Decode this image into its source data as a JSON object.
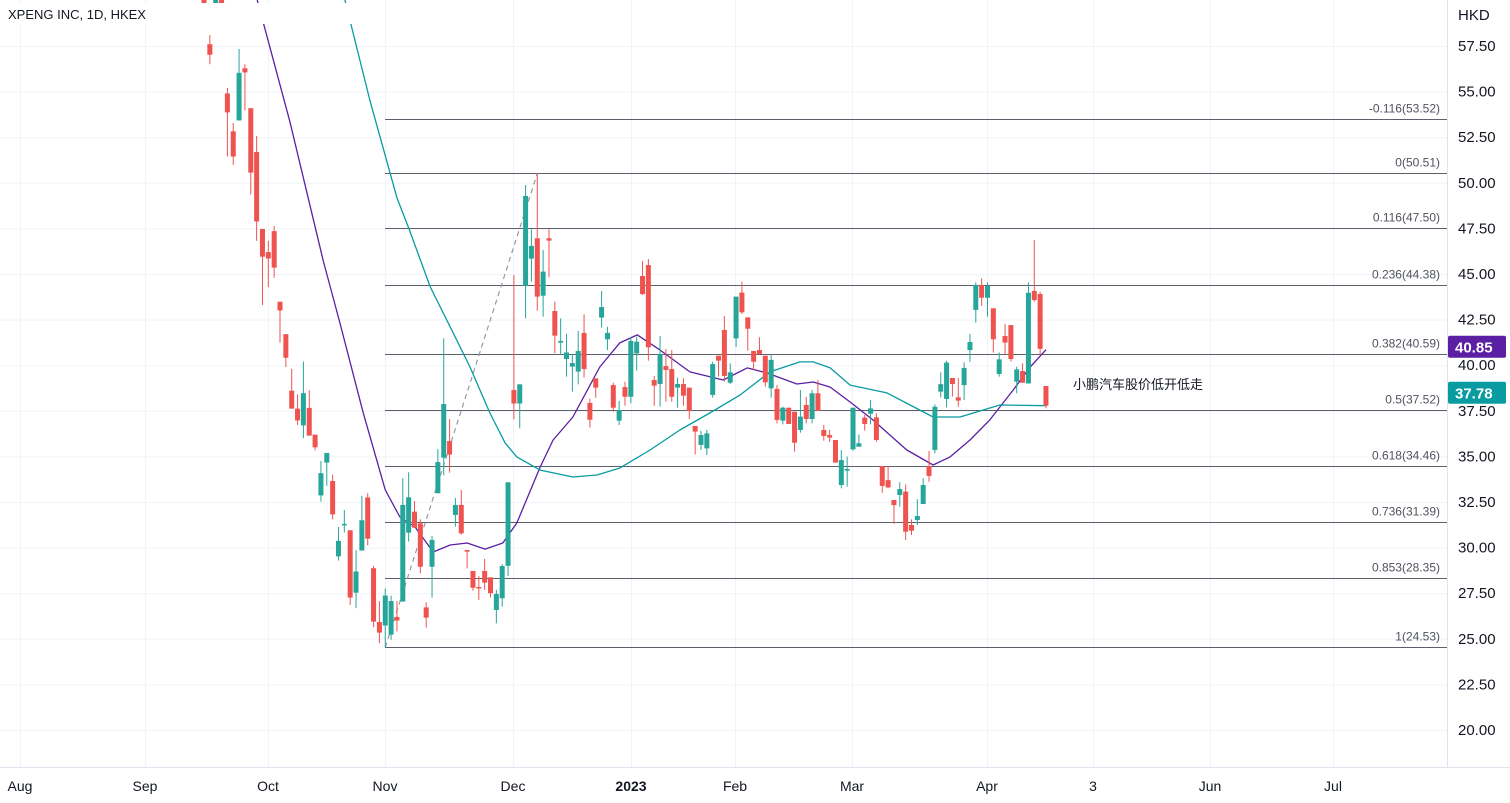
{
  "header": {
    "title": "XPENG INC, 1D, HKEX"
  },
  "axis": {
    "currency": "HKD"
  },
  "annotation": "小鹏汽车股价低开低走",
  "last_values": [
    {
      "label": "40.85",
      "value": 40.85,
      "color": "#5b1fa3"
    },
    {
      "label": "37.78",
      "value": 37.78,
      "color": "#089ba0"
    }
  ],
  "colors": {
    "up": "#26a69a",
    "down": "#ef5350",
    "grid": "#f0f3fa",
    "fib": "#5d606b",
    "trend": "#9598a1"
  },
  "chart_data": {
    "type": "candlestick",
    "title": "XPENG INC, 1D, HKEX",
    "ylabel": "HKD",
    "ylim": [
      18.5,
      60.0
    ],
    "grid": true,
    "yticks": [
      "57.50",
      "55.00",
      "52.50",
      "50.00",
      "47.50",
      "45.00",
      "42.50",
      "40.00",
      "37.50",
      "35.00",
      "32.50",
      "30.00",
      "27.50",
      "25.00",
      "22.50",
      "20.00"
    ],
    "xticks": [
      {
        "label": "Aug",
        "bold": false
      },
      {
        "label": "Sep",
        "bold": false
      },
      {
        "label": "Oct",
        "bold": false
      },
      {
        "label": "Nov",
        "bold": false
      },
      {
        "label": "Dec",
        "bold": false
      },
      {
        "label": "2023",
        "bold": true
      },
      {
        "label": "Feb",
        "bold": false
      },
      {
        "label": "Mar",
        "bold": false
      },
      {
        "label": "Apr",
        "bold": false
      },
      {
        "label": "3",
        "bold": false
      },
      {
        "label": "Jun",
        "bold": false
      },
      {
        "label": "Jul",
        "bold": false
      }
    ],
    "candles_ohlc": [
      [
        60.3,
        60.6,
        59.4,
        59.56
      ],
      [
        57.6,
        58.1,
        56.5,
        57.02
      ],
      [
        59.6,
        60.5,
        59.4,
        60.2
      ],
      [
        60.2,
        60.6,
        59.3,
        59.5
      ],
      [
        54.9,
        55.2,
        51.44,
        53.86
      ],
      [
        52.82,
        53.28,
        50.98,
        51.44
      ],
      [
        53.42,
        57.34,
        53.42,
        56.03
      ],
      [
        56.28,
        56.5,
        53.97,
        56.05
      ],
      [
        54.09,
        54.09,
        49.36,
        50.56
      ],
      [
        51.69,
        52.57,
        46.82,
        47.88
      ],
      [
        47.47,
        47.47,
        43.3,
        45.95
      ],
      [
        46.2,
        46.82,
        44.28,
        45.85
      ],
      [
        47.35,
        47.63,
        44.8,
        45.35
      ],
      [
        43.48,
        43.48,
        41.24,
        43.0
      ],
      [
        41.7,
        41.7,
        39.9,
        40.41
      ],
      [
        38.6,
        39.8,
        37.62,
        37.62
      ],
      [
        37.62,
        38.4,
        36.72,
        36.97
      ],
      [
        36.7,
        40.2,
        36.0,
        38.47
      ],
      [
        37.66,
        38.63,
        36.14,
        36.14
      ],
      [
        36.19,
        36.19,
        35.33,
        35.5
      ],
      [
        32.86,
        34.75,
        32.52,
        34.08
      ],
      [
        34.66,
        35.19,
        33.39,
        35.19
      ],
      [
        33.65,
        34.0,
        31.55,
        31.82
      ],
      [
        29.52,
        31.13,
        29.29,
        30.37
      ],
      [
        31.24,
        32.06,
        30.83,
        31.3
      ],
      [
        30.95,
        30.95,
        26.86,
        27.26
      ],
      [
        27.53,
        29.86,
        26.68,
        28.69
      ],
      [
        29.84,
        32.84,
        29.84,
        31.5
      ],
      [
        32.75,
        32.98,
        30.12,
        30.49
      ],
      [
        28.87,
        29.0,
        25.64,
        25.94
      ],
      [
        25.92,
        27.07,
        24.76,
        25.34
      ],
      [
        25.73,
        27.76,
        24.53,
        27.37
      ],
      [
        25.23,
        27.37,
        24.95,
        27.07
      ],
      [
        26.2,
        27.07,
        25.4,
        26.0
      ],
      [
        27.04,
        33.8,
        27.04,
        32.34
      ],
      [
        30.82,
        34.13,
        30.33,
        32.76
      ],
      [
        31.97,
        32.56,
        31.09,
        31.09
      ],
      [
        31.33,
        31.55,
        28.59,
        28.95
      ],
      [
        26.72,
        27.0,
        25.61,
        26.16
      ],
      [
        28.95,
        30.64,
        27.26,
        30.42
      ],
      [
        32.98,
        35.4,
        32.98,
        34.69
      ],
      [
        34.93,
        41.47,
        33.96,
        37.87
      ],
      [
        35.84,
        37.05,
        34.11,
        35.1
      ],
      [
        31.79,
        32.72,
        31.15,
        32.34
      ],
      [
        32.34,
        33.16,
        30.71,
        30.78
      ],
      [
        29.87,
        29.87,
        28.86,
        29.78
      ],
      [
        28.72,
        28.72,
        27.64,
        27.8
      ],
      [
        27.84,
        28.44,
        27.13,
        27.77
      ],
      [
        28.72,
        29.38,
        27.68,
        28.08
      ],
      [
        28.37,
        28.37,
        27.27,
        27.5
      ],
      [
        26.58,
        27.68,
        25.85,
        27.46
      ],
      [
        27.22,
        29.1,
        26.76,
        28.99
      ],
      [
        29.0,
        33.58,
        28.44,
        33.58
      ],
      [
        38.64,
        44.94,
        37.03,
        37.9
      ],
      [
        37.9,
        38.95,
        36.54,
        38.95
      ],
      [
        44.34,
        49.88,
        42.57,
        49.28
      ],
      [
        45.84,
        47.45,
        44.58,
        46.54
      ],
      [
        46.96,
        50.51,
        42.99,
        43.76
      ],
      [
        43.81,
        46.32,
        42.66,
        45.13
      ],
      [
        46.96,
        47.45,
        44.82,
        46.83
      ],
      [
        42.97,
        43.48,
        40.65,
        41.62
      ],
      [
        41.24,
        42.57,
        40.56,
        41.33
      ],
      [
        40.34,
        41.73,
        39.37,
        40.7
      ],
      [
        39.92,
        40.6,
        38.55,
        40.12
      ],
      [
        39.65,
        41.88,
        38.95,
        40.78
      ],
      [
        41.77,
        42.79,
        39.32,
        39.79
      ],
      [
        37.93,
        38.17,
        36.58,
        37.01
      ],
      [
        39.28,
        39.28,
        38.22,
        38.77
      ],
      [
        42.61,
        44.07,
        42.06,
        43.19
      ],
      [
        41.42,
        42.11,
        40.83,
        41.77
      ],
      [
        38.91,
        39.04,
        37.45,
        37.67
      ],
      [
        36.96,
        38.04,
        36.72,
        37.54
      ],
      [
        38.8,
        39.1,
        37.78,
        38.27
      ],
      [
        38.27,
        41.56,
        37.91,
        41.33
      ],
      [
        40.65,
        41.56,
        39.7,
        41.29
      ],
      [
        44.89,
        45.71,
        43.85,
        43.9
      ],
      [
        45.49,
        45.82,
        40.25,
        40.98
      ],
      [
        39.19,
        39.41,
        37.78,
        38.88
      ],
      [
        38.97,
        41.6,
        37.73,
        40.61
      ],
      [
        39.95,
        40.89,
        38.0,
        39.74
      ],
      [
        39.79,
        40.83,
        38.0,
        38.27
      ],
      [
        38.77,
        39.32,
        37.67,
        38.97
      ],
      [
        38.97,
        39.28,
        37.78,
        38.33
      ],
      [
        38.77,
        38.77,
        37.05,
        37.49
      ],
      [
        36.67,
        36.67,
        35.11,
        36.36
      ],
      [
        35.63,
        36.41,
        35.35,
        36.17
      ],
      [
        35.44,
        36.45,
        35.08,
        36.26
      ],
      [
        38.37,
        40.19,
        38.22,
        40.06
      ],
      [
        40.52,
        40.52,
        39.37,
        40.25
      ],
      [
        41.93,
        42.7,
        39.1,
        39.41
      ],
      [
        39.04,
        40.1,
        38.97,
        39.61
      ],
      [
        41.47,
        43.76,
        41.0,
        43.76
      ],
      [
        43.98,
        44.58,
        42.81,
        42.9
      ],
      [
        42.62,
        42.62,
        40.8,
        42.0
      ],
      [
        40.78,
        40.78,
        39.74,
        40.19
      ],
      [
        40.83,
        41.53,
        40.56,
        40.61
      ],
      [
        40.52,
        40.52,
        38.82,
        39.06
      ],
      [
        38.73,
        40.61,
        38.22,
        40.29
      ],
      [
        38.7,
        38.91,
        36.81,
        37.0
      ],
      [
        36.96,
        37.73,
        36.76,
        37.67
      ],
      [
        37.67,
        37.67,
        36.78,
        36.78
      ],
      [
        37.45,
        37.45,
        35.26,
        35.75
      ],
      [
        36.45,
        38.64,
        36.3,
        37.18
      ],
      [
        37.82,
        38.27,
        36.81,
        37.05
      ],
      [
        37.05,
        38.64,
        36.81,
        38.46
      ],
      [
        38.46,
        39.19,
        37.49,
        37.49
      ],
      [
        36.45,
        36.72,
        35.86,
        36.12
      ],
      [
        36.17,
        36.45,
        35.8,
        36.03
      ],
      [
        35.9,
        35.9,
        34.66,
        34.66
      ],
      [
        33.43,
        35.35,
        33.25,
        34.8
      ],
      [
        34.22,
        34.99,
        33.34,
        34.31
      ],
      [
        35.39,
        37.67,
        35.31,
        37.67
      ],
      [
        35.53,
        36.2,
        35.53,
        35.72
      ],
      [
        37.12,
        37.27,
        36.41,
        36.78
      ],
      [
        37.34,
        38.09,
        36.76,
        37.63
      ],
      [
        37.14,
        37.36,
        35.81,
        35.9
      ],
      [
        34.47,
        34.47,
        33.01,
        33.38
      ],
      [
        33.7,
        34.47,
        33.25,
        33.3
      ],
      [
        32.61,
        32.61,
        31.3,
        32.33
      ],
      [
        32.88,
        33.58,
        32.24,
        33.21
      ],
      [
        33.07,
        33.47,
        30.42,
        30.87
      ],
      [
        31.24,
        31.55,
        30.69,
        30.93
      ],
      [
        31.51,
        32.65,
        31.24,
        31.73
      ],
      [
        32.39,
        33.8,
        32.39,
        33.43
      ],
      [
        34.47,
        35.3,
        33.61,
        33.93
      ],
      [
        35.35,
        37.85,
        35.17,
        37.72
      ],
      [
        38.55,
        39.61,
        38.24,
        38.96
      ],
      [
        38.15,
        40.25,
        37.69,
        40.14
      ],
      [
        39.3,
        39.3,
        38.28,
        38.97
      ],
      [
        38.24,
        39.3,
        37.73,
        38.06
      ],
      [
        38.91,
        40.16,
        38.09,
        39.85
      ],
      [
        40.83,
        41.71,
        40.19,
        41.27
      ],
      [
        43.03,
        44.54,
        42.33,
        44.4
      ],
      [
        44.4,
        44.76,
        43.25,
        43.7
      ],
      [
        43.7,
        44.54,
        42.66,
        44.34
      ],
      [
        43.12,
        43.12,
        40.69,
        41.42
      ],
      [
        39.52,
        40.7,
        39.37,
        40.32
      ],
      [
        41.6,
        42.26,
        40.56,
        41.24
      ],
      [
        42.2,
        42.2,
        40.2,
        40.34
      ],
      [
        39.1,
        39.92,
        38.46,
        39.77
      ],
      [
        39.68,
        40.1,
        39.04,
        39.04
      ],
      [
        39.0,
        44.54,
        39.0,
        43.97
      ],
      [
        44.07,
        46.86,
        43.48,
        43.57
      ],
      [
        43.9,
        44.03,
        40.56,
        40.9
      ],
      [
        38.86,
        38.86,
        37.64,
        37.78
      ]
    ],
    "moving_averages": [
      {
        "color": "#5b1fa3",
        "last": 40.85,
        "points": [
          [
            9.1,
            60.02
          ],
          [
            14.7,
            53.33
          ],
          [
            20.4,
            45.71
          ],
          [
            23.3,
            42.26
          ],
          [
            27.2,
            37.43
          ],
          [
            31.0,
            33.16
          ],
          [
            33.5,
            31.68
          ],
          [
            36.1,
            31.13
          ],
          [
            39.2,
            29.76
          ],
          [
            42.1,
            30.14
          ],
          [
            45.0,
            30.25
          ],
          [
            48.1,
            29.92
          ],
          [
            51.1,
            30.25
          ],
          [
            53.5,
            31.35
          ],
          [
            57.5,
            34.42
          ],
          [
            59.7,
            35.9
          ],
          [
            63.1,
            37.16
          ],
          [
            67.7,
            39.9
          ],
          [
            71.1,
            41.22
          ],
          [
            74.1,
            41.66
          ],
          [
            78.0,
            40.83
          ],
          [
            83.1,
            39.63
          ],
          [
            88.8,
            39.19
          ],
          [
            92.9,
            39.85
          ],
          [
            96.3,
            39.57
          ],
          [
            101.4,
            38.97
          ],
          [
            104.2,
            39.08
          ],
          [
            107.1,
            38.8
          ],
          [
            110.5,
            37.98
          ],
          [
            114.4,
            37.0
          ],
          [
            120.2,
            35.35
          ],
          [
            124.7,
            34.53
          ],
          [
            127.6,
            34.97
          ],
          [
            131.0,
            35.9
          ],
          [
            134.4,
            37.0
          ],
          [
            138.4,
            38.64
          ],
          [
            141.3,
            39.9
          ],
          [
            144.0,
            40.85
          ]
        ]
      },
      {
        "color": "#089ba0",
        "last": 37.78,
        "points": [
          [
            24.1,
            60.02
          ],
          [
            28.4,
            54.48
          ],
          [
            33.0,
            49.17
          ],
          [
            35.2,
            47.36
          ],
          [
            38.7,
            44.29
          ],
          [
            42.1,
            42.1
          ],
          [
            45.5,
            39.9
          ],
          [
            48.9,
            37.38
          ],
          [
            51.5,
            35.74
          ],
          [
            53.5,
            34.97
          ],
          [
            57.5,
            34.25
          ],
          [
            63.1,
            33.87
          ],
          [
            67.2,
            33.98
          ],
          [
            71.1,
            34.36
          ],
          [
            76.3,
            35.35
          ],
          [
            81.4,
            36.45
          ],
          [
            86.5,
            37.38
          ],
          [
            91.7,
            38.37
          ],
          [
            96.8,
            39.63
          ],
          [
            101.9,
            40.18
          ],
          [
            104.2,
            40.18
          ],
          [
            107.1,
            39.85
          ],
          [
            110.5,
            38.91
          ],
          [
            116.8,
            38.48
          ],
          [
            124.7,
            37.16
          ],
          [
            129.3,
            37.16
          ],
          [
            136.1,
            37.82
          ],
          [
            144.0,
            37.78
          ]
        ]
      }
    ],
    "trendline": {
      "from_candle": 31,
      "from_price": 24.53,
      "to_candle": 57,
      "to_price": 50.51,
      "style": "dashed"
    },
    "fib_levels": [
      {
        "ratio": -0.116,
        "price": 53.52,
        "label": "-0.116(53.52)"
      },
      {
        "ratio": 0,
        "price": 50.51,
        "label": "0(50.51)"
      },
      {
        "ratio": 0.116,
        "price": 47.5,
        "label": "0.116(47.50)"
      },
      {
        "ratio": 0.236,
        "price": 44.38,
        "label": "0.236(44.38)"
      },
      {
        "ratio": 0.382,
        "price": 40.59,
        "label": "0.382(40.59)"
      },
      {
        "ratio": 0.5,
        "price": 37.52,
        "label": "0.5(37.52)"
      },
      {
        "ratio": 0.618,
        "price": 34.46,
        "label": "0.618(34.46)"
      },
      {
        "ratio": 0.736,
        "price": 31.39,
        "label": "0.736(31.39)"
      },
      {
        "ratio": 0.853,
        "price": 28.35,
        "label": "0.853(28.35)"
      },
      {
        "ratio": 1,
        "price": 24.53,
        "label": "1(24.53)"
      }
    ]
  }
}
